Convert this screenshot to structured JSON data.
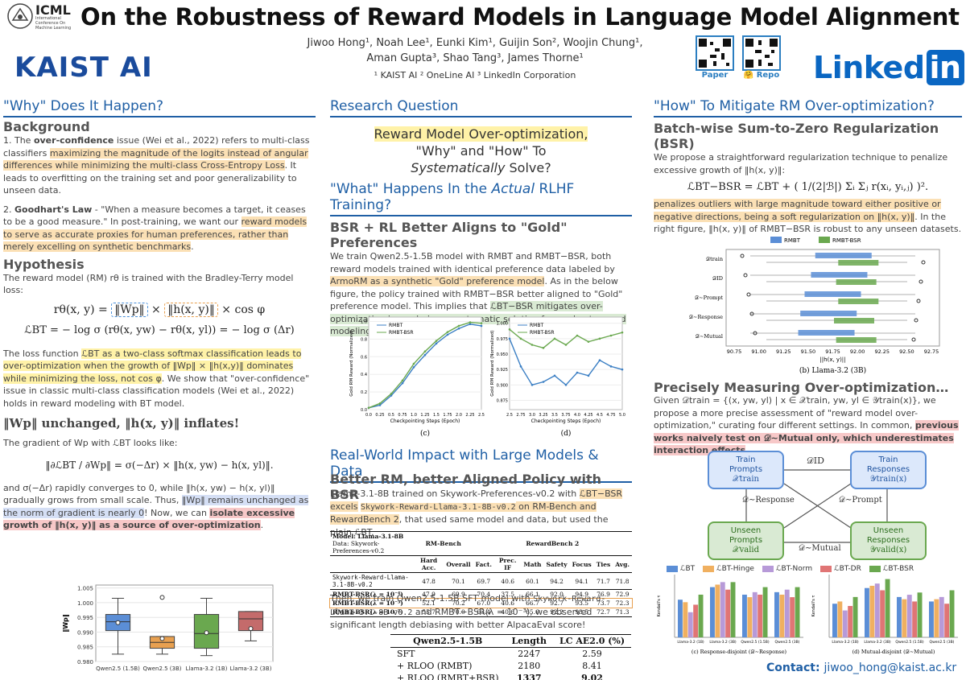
{
  "header": {
    "title": "On the Robustness of Reward Models in Language Model Alignment",
    "icml_title": "ICML",
    "icml_sub": "International Conference On Machine Learning",
    "kaist_logo": "KAIST AI",
    "authors_line1": "Jiwoo Hong¹, Noah Lee¹, Eunki Kim¹, Guijin Son², Woojin Chung¹,",
    "authors_line2": "Aman Gupta³, Shao Tang³, James Thorne¹",
    "affiliations": "¹ KAIST AI  ² OneLine AI  ³ LinkedIn Corporation",
    "qr_paper_label": "Paper",
    "qr_repo_label": "🤗 Repo",
    "linkedin_text": "Linked",
    "linkedin_in": "in"
  },
  "left": {
    "section_title": "\"Why\" Does It Happen?",
    "background_title": "Background",
    "bg_p1_a": "1. The ",
    "bg_p1_b": "over-confidence",
    "bg_p1_c": " issue (Wei et al., 2022) refers to multi-class classifiers ",
    "bg_p1_hl": "maximizing the magnitude of the logits instead of angular differences while minimizing the multi-class Cross-Entropy Loss",
    "bg_p1_d": ". It leads to overfitting on the training set and poor generalizability to unseen data.",
    "bg_p2_a": "2. ",
    "bg_p2_b": "Goodhart's Law",
    "bg_p2_c": " - \"When a measure becomes a target, it ceases to be a good measure.\" In post-training, we want our ",
    "bg_p2_hl": "reward models to serve as accurate proxies for human preferences, rather than merely excelling on synthetic benchmarks",
    "bg_p2_d": ".",
    "hypothesis_title": "Hypothesis",
    "hyp_p1": "The reward model (RM) rθ is trained with the Bradley-Terry model loss:",
    "eq1_left": "rθ(x, y) = ",
    "eq1_w": "‖Wp‖",
    "eq1_mid": " × ",
    "eq1_h": "‖h(x, y)‖",
    "eq1_right": " × cos φ",
    "eq2": "ℒBT = − log σ (rθ(x, yw) − rθ(x, yl)) = − log σ (Δr)",
    "loss_p_a": "The loss function ",
    "loss_p_hl": "ℒBT as a two-class softmax classification leads to over-optimization when the growth of ‖Wp‖ × ‖h(x,y)‖ dominates while minimizing the loss, not cos φ",
    "loss_p_b": ". We show that \"over-confidence\" issue in classic multi-class classification models (Wei et al., 2022) holds in reward modeling with BT model.",
    "claim": "‖Wp‖ unchanged, ‖h(x, y)‖ inflates!",
    "grad_p": "The gradient of Wp with ℒBT looks like:",
    "eq3": "‖∂ℒBT / ∂Wp‖ = σ(−Δr) × ‖h(x, yw) − h(x, yl)‖.",
    "conv_a": "and σ(−Δr) rapidly converges to 0, while ‖h(x, yw) − h(x, yl)‖ gradually grows from small scale. Thus, ",
    "conv_hl_b": "‖Wp‖ remains unchanged as the norm of gradient is nearly 0",
    "conv_b": "! Now, we can ",
    "conv_hl_r": "isolate excessive growth of ‖h(x, y)‖ as a source of over-optimization",
    "conv_c": ".",
    "boxplot_ylabel": "‖Wp‖",
    "boxplot_ticks": [
      "1.005",
      "1.000",
      "0.995",
      "0.990",
      "0.985",
      "0.980"
    ],
    "boxplot_cats": [
      "Qwen2.5 (1.5B)",
      "Qwen2.5 (3B)",
      "Llama-3.2 (1B)",
      "Llama-3.2 (3B)"
    ]
  },
  "middle": {
    "rq_title": "Research Question",
    "rq_line1": "Reward Model Over-optimization,",
    "rq_line2": "\"Why\" and \"How\" To",
    "rq_line3_i": "Systematically",
    "rq_line3_b": " Solve?",
    "what_title_a": "\"What\" Happens In the ",
    "what_title_i": "Actual",
    "what_title_b": " RLHF Training?",
    "bsr_title": "BSR + RL Better Aligns to \"Gold\" Preferences",
    "bsr_p_a": "We train Qwen2.5-1.5B model with RMBT and RMBT−BSR, both reward models trained with identical preference data labeled by ",
    "bsr_p_hl": "ArmoRM as a synthetic \"Gold\" preference model",
    "bsr_p_b": ". As in the below figure, the policy trained with RMBT−BSR better aligned to \"Gold\" preference model. This implies that ",
    "bsr_p_hl2": "ℒBT−BSR mitigates over-optimization issue, being a systematic solution for a robust reward modeling with limited data",
    "bsr_p_c": ".",
    "fig_c_caption": "(c)",
    "fig_d_caption": "(d)",
    "fig_c_xlabel": "Checkpointing Steps (Epoch)",
    "fig_d_xlabel": "Checkpointing Steps (Epoch)",
    "fig_ylabel": "Gold RM Reward (Normalized)",
    "legend_bt": "RMBT",
    "legend_bsr": "RMBT-BSR",
    "rw_title": "Real-World Impact with Large Models & Data",
    "rw_sub": "Better RM, better Aligned Policy with BSR",
    "rw_p_a": "Llama-3.1-8B trained on Skywork-Preferences-v0.2 with ",
    "rw_p_hl1": "ℒBT−BSR excels",
    "rw_p_hl2": "Skywork-Reward-Llama-3.1-8B-v0.2",
    "rw_p_hl3": " on RM-Bench and RewardBench 2",
    "rw_p_b": ", that used same model and data, but used the plain ℒBT.",
    "table1": {
      "model_label": "Model: Llama-3.1-8B",
      "data_label": "Data: Skywork-Preferences-v0.2",
      "group1": "RM-Bench",
      "group2": "RewardBench 2",
      "cols": [
        "Hard Acc.",
        "Overall",
        "Fact.",
        "Prec. IF",
        "Math",
        "Safety",
        "Focus",
        "Ties",
        "Avg."
      ],
      "rows": [
        {
          "name": "Skywork-Reward-Llama-3.1-8B-v0.2",
          "vals": [
            "47.8",
            "70.1",
            "69.7",
            "40.6",
            "60.1",
            "94.2",
            "94.1",
            "71.7",
            "71.8"
          ]
        },
        {
          "name": "RMBT-BSR(λ = 10⁻⁴)",
          "vals": [
            "47.9",
            "69.9",
            "70.4",
            "37.5",
            "66.1",
            "92.0",
            "94.9",
            "76.9",
            "72.9"
          ]
        },
        {
          "name": "RMBT-BSR(λ = 10⁻³)",
          "vals": [
            "52.1",
            "70.2",
            "67.0",
            "40.6",
            "66.7",
            "92.7",
            "93.5",
            "73.7",
            "72.3"
          ]
        },
        {
          "name": "RMBT-BSR(λ = 10⁻²)",
          "vals": [
            "55.7",
            "70.0",
            "63.4",
            "40.6",
            "65.6",
            "92.2",
            "93.5",
            "72.7",
            "71.3"
          ]
        }
      ]
    },
    "then_p_a": "Then, we train Qwen2.5-1.5B SFT model with ",
    "then_p_mono": "Skywork-Reward-Llama-3.1-8B-v0.2",
    "then_p_b": " and RMBT−BSR(λ = 10⁻³), we observed significant length debiasing with better AlpacaEval score!",
    "table2": {
      "headers": [
        "Qwen2.5-1.5B",
        "Length",
        "LC AE2.0 (%)"
      ],
      "rows": [
        [
          "SFT",
          "2247",
          "2.59"
        ],
        [
          "+ RLOO (RMBT)",
          "2180",
          "8.41"
        ],
        [
          "+ RLOO (RMBT+BSR)",
          "1337",
          "9.02"
        ]
      ]
    }
  },
  "right": {
    "section_title": "\"How\" To Mitigate RM Over-optimization?",
    "bsr_title": "Batch-wise Sum-to-Zero Regularization (BSR)",
    "bsr_p": "We propose a straightforward regularization technique to penalize excessive growth of ‖h(x, y)‖:",
    "eq_bsr": "ℒBT−BSR = ℒBT + ( 1/(2|ℬ|) Σᵢ Σⱼ r(xᵢ, yᵢ,ⱼ) )².",
    "bsr_p2_hl": "penalizes outliers with large magnitude toward either positive or negative directions, being a soft regularization on ‖h(x, y)‖",
    "bsr_p2_b": ". In the right figure, ‖h(x, y)‖ of RMBT−BSR is robust to any unseen datasets.",
    "fig_legend_bt": "RMBT",
    "fig_legend_bsr": "RMBT-BSR",
    "fig_rows": [
      "𝒟train",
      "𝒟ID",
      "𝒟∼Prompt",
      "𝒟∼Response",
      "𝒟∼Mutual"
    ],
    "fig_xticks": [
      "90.75",
      "91.00",
      "91.25",
      "91.50",
      "91.75",
      "92.00",
      "92.25",
      "92.50",
      "92.75"
    ],
    "fig_xlabel": "||h(x, y)||",
    "fig_caption": "(b) Llama-3.2 (3B)",
    "measure_title": "Precisely Measuring Over-optimization…",
    "measure_p_a": "Given 𝒟train = {(x, yw, yl) | x ∈ 𝒳train, yw, yl ∈ 𝒴train(x)}, we propose a more precise assessment of \"reward model over-optimization,\" curating four different settings. In common, ",
    "measure_p_hl": "previous works naively test on 𝒟∼Mutual only, which underestimates interaction effects",
    "measure_p_b": ".",
    "diagram": {
      "tl": [
        "Train",
        "Prompts",
        "𝒳train"
      ],
      "tr": [
        "Train",
        "Responses",
        "𝒴train(x)"
      ],
      "bl": [
        "Unseen",
        "Prompts",
        "𝒳valid"
      ],
      "br": [
        "Unseen",
        "Responses",
        "𝒴valid(x)"
      ],
      "top_label": "𝒟ID",
      "left_label": "𝒟∼Response",
      "right_label": "𝒟∼Prompt",
      "bottom_label": "𝒟∼Mutual"
    },
    "bar_legend": [
      "ℒBT",
      "ℒBT-Hinge",
      "ℒBT-Norm",
      "ℒBT-DR",
      "ℒBT-BSR"
    ],
    "bar_cats": [
      "Llama-3.2 (1B)",
      "Llama-3.2 (3B)",
      "Qwen2.5 (1.5B)",
      "Qwen2.5 (3B)"
    ],
    "bar_caption_c": "(c) Response-disjoint (𝒟∼Response)",
    "bar_caption_d": "(d) Mutual-disjoint (𝒟∼Mutual)",
    "bar_ylabel": "Kendall's τ",
    "contact_label": "Contact:",
    "contact_email": "jiwoo_hong@kaist.ac.kr"
  },
  "colors": {
    "accent": "#1f5fa5",
    "bt_blue": "#5b8ed6",
    "bsr_green": "#6aa84f",
    "highlight_orange": "#fbe0b5",
    "highlight_yellow": "#fff2a8"
  },
  "chart_data": [
    {
      "type": "box",
      "title": "",
      "ylabel": "‖Wp‖",
      "categories": [
        "Qwen2.5 (1.5B)",
        "Qwen2.5 (3B)",
        "Llama-3.2 (1B)",
        "Llama-3.2 (3B)"
      ],
      "medians": [
        0.9935,
        0.9865,
        0.9895,
        0.9945
      ],
      "q1": [
        0.9905,
        0.9845,
        0.9845,
        0.9905
      ],
      "q3": [
        0.996,
        0.9885,
        0.996,
        0.997
      ],
      "whisker_low": [
        0.9825,
        0.9825,
        0.982,
        0.987
      ],
      "whisker_high": [
        1.0015,
        0.9885,
        1.0015,
        0.997
      ],
      "means": [
        0.9932,
        0.9878,
        0.9898,
        0.9912
      ],
      "outliers": [
        [],
        [
          1.0018
        ],
        [],
        []
      ],
      "colors": [
        "#5b8ed6",
        "#e8a050",
        "#6aa84f",
        "#c46b6b"
      ],
      "ylim": [
        0.98,
        1.006
      ]
    },
    {
      "type": "line",
      "title": "(c)",
      "xlabel": "Checkpointing Steps (Epoch)",
      "ylabel": "Gold RM Reward (Normalized)",
      "x": [
        0.0,
        0.25,
        0.5,
        0.75,
        1.0,
        1.25,
        1.5,
        1.75,
        2.0,
        2.25,
        2.5
      ],
      "series": [
        {
          "name": "RMBT",
          "values": [
            0.02,
            0.05,
            0.16,
            0.3,
            0.48,
            0.62,
            0.75,
            0.85,
            0.92,
            0.97,
            0.95
          ]
        },
        {
          "name": "RMBT-BSR",
          "values": [
            0.02,
            0.07,
            0.18,
            0.33,
            0.52,
            0.66,
            0.78,
            0.88,
            0.95,
            0.99,
            0.98
          ]
        }
      ]
    },
    {
      "type": "line",
      "title": "(d)",
      "xlabel": "Checkpointing Steps (Epoch)",
      "ylabel": "Gold RM Reward (Normalized)",
      "x": [
        2.5,
        2.75,
        3.0,
        3.25,
        3.5,
        3.75,
        4.0,
        4.25,
        4.5,
        4.75,
        5.0
      ],
      "ylim": [
        0.85,
        1.0
      ],
      "series": [
        {
          "name": "RMBT",
          "values": [
            0.975,
            0.93,
            0.9,
            0.905,
            0.915,
            0.9,
            0.92,
            0.915,
            0.94,
            0.93,
            0.925
          ]
        },
        {
          "name": "RMBT-BSR",
          "values": [
            0.99,
            0.975,
            0.965,
            0.96,
            0.975,
            0.965,
            0.98,
            0.97,
            0.975,
            0.98,
            0.985
          ]
        }
      ]
    },
    {
      "type": "bar",
      "title": "(c) Response-disjoint (𝒟∼Response)",
      "categories": [
        "Llama-3.2 (1B)",
        "Llama-3.2 (3B)",
        "Qwen2.5 (1.5B)",
        "Qwen2.5 (3B)"
      ],
      "series": [
        {
          "name": "ℒBT",
          "values": [
            0.55,
            0.6,
            0.57,
            0.58
          ]
        },
        {
          "name": "ℒBT-Hinge",
          "values": [
            0.54,
            0.61,
            0.56,
            0.57
          ]
        },
        {
          "name": "ℒBT-Norm",
          "values": [
            0.5,
            0.62,
            0.58,
            0.59
          ]
        },
        {
          "name": "ℒBT-DR",
          "values": [
            0.53,
            0.59,
            0.57,
            0.56
          ]
        },
        {
          "name": "ℒBT-BSR",
          "values": [
            0.57,
            0.62,
            0.6,
            0.6
          ]
        }
      ],
      "ylabel": "Kendall's τ",
      "ylim": [
        0.4,
        0.65
      ]
    },
    {
      "type": "bar",
      "title": "(d) Mutual-disjoint (𝒟∼Mutual)",
      "categories": [
        "Llama-3.2 (1B)",
        "Llama-3.2 (3B)",
        "Qwen2.5 (1.5B)",
        "Qwen2.5 (3B)"
      ],
      "series": [
        {
          "name": "ℒBT",
          "values": [
            0.55,
            0.62,
            0.58,
            0.56
          ]
        },
        {
          "name": "ℒBT-Hinge",
          "values": [
            0.56,
            0.63,
            0.57,
            0.57
          ]
        },
        {
          "name": "ℒBT-Norm",
          "values": [
            0.52,
            0.64,
            0.59,
            0.58
          ]
        },
        {
          "name": "ℒBT-DR",
          "values": [
            0.54,
            0.61,
            0.56,
            0.55
          ]
        },
        {
          "name": "ℒBT-BSR",
          "values": [
            0.58,
            0.66,
            0.6,
            0.61
          ]
        }
      ],
      "ylabel": "Kendall's τ",
      "ylim": [
        0.4,
        0.68
      ]
    }
  ]
}
